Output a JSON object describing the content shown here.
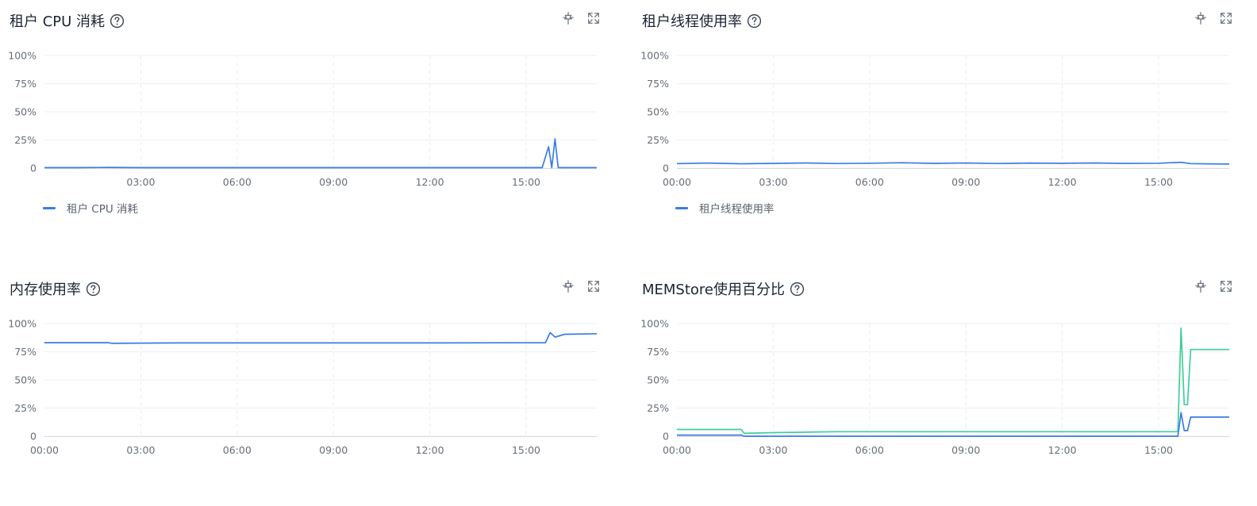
{
  "panels": [
    {
      "title": "租户 CPU 消耗",
      "legend": "租户 CPU 消耗"
    },
    {
      "title": "租户线程使用率",
      "legend": "租户线程使用率"
    },
    {
      "title": "内存使用率"
    },
    {
      "title": "MEMStore使用百分比"
    }
  ],
  "icons": {
    "help": "help-circle-icon",
    "pin": "pin-icon",
    "fullscreen": "fullscreen-icon"
  },
  "colors": {
    "series_blue": "#3b7be8",
    "series_green": "#3ecf98"
  },
  "chart_data": [
    {
      "type": "line",
      "title": "租户 CPU 消耗",
      "y_ticks": [
        "100%",
        "75%",
        "50%",
        "25%",
        "0"
      ],
      "x_ticks": [
        "03:00",
        "06:00",
        "09:00",
        "12:00",
        "15:00"
      ],
      "ylim": [
        0,
        100
      ],
      "xlim_hours": [
        0,
        17.2
      ],
      "legend_position": "bottom-left",
      "series": [
        {
          "name": "租户 CPU 消耗",
          "color": "#3b7be8",
          "points": [
            [
              0,
              0.4
            ],
            [
              1,
              0.4
            ],
            [
              2,
              0.6
            ],
            [
              3,
              0.4
            ],
            [
              6,
              0.4
            ],
            [
              9,
              0.4
            ],
            [
              12,
              0.4
            ],
            [
              15.5,
              0.4
            ],
            [
              15.7,
              19
            ],
            [
              15.8,
              0.4
            ],
            [
              15.9,
              26
            ],
            [
              16.0,
              0.4
            ],
            [
              17.2,
              0.4
            ]
          ]
        }
      ]
    },
    {
      "type": "line",
      "title": "租户线程使用率",
      "y_ticks": [
        "100%",
        "75%",
        "50%",
        "25%",
        "0"
      ],
      "x_ticks": [
        "00:00",
        "03:00",
        "06:00",
        "09:00",
        "12:00",
        "15:00"
      ],
      "ylim": [
        0,
        100
      ],
      "xlim_hours": [
        0,
        17.2
      ],
      "legend_position": "bottom-left",
      "series": [
        {
          "name": "租户线程使用率",
          "color": "#3b7be8",
          "points": [
            [
              0,
              4
            ],
            [
              1,
              4.5
            ],
            [
              2,
              3.9
            ],
            [
              3,
              4.2
            ],
            [
              4,
              4.6
            ],
            [
              5,
              4.1
            ],
            [
              6,
              4.4
            ],
            [
              7,
              4.8
            ],
            [
              8,
              4.2
            ],
            [
              9,
              4.6
            ],
            [
              10,
              4.1
            ],
            [
              11,
              4.5
            ],
            [
              12,
              4.3
            ],
            [
              13,
              4.6
            ],
            [
              14,
              4.2
            ],
            [
              15,
              4.4
            ],
            [
              15.7,
              5.2
            ],
            [
              16,
              4
            ],
            [
              17.2,
              3.6
            ]
          ]
        }
      ]
    },
    {
      "type": "line",
      "title": "内存使用率",
      "y_ticks": [
        "100%",
        "75%",
        "50%",
        "25%",
        "0"
      ],
      "x_ticks": [
        "00:00",
        "03:00",
        "06:00",
        "09:00",
        "12:00",
        "15:00"
      ],
      "ylim": [
        0,
        100
      ],
      "xlim_hours": [
        0,
        17.2
      ],
      "series": [
        {
          "color": "#3b7be8",
          "points": [
            [
              0,
              83
            ],
            [
              2,
              83
            ],
            [
              2.1,
              82.5
            ],
            [
              4,
              82.8
            ],
            [
              8,
              82.8
            ],
            [
              12,
              82.8
            ],
            [
              15.6,
              83
            ],
            [
              15.75,
              92
            ],
            [
              15.9,
              88
            ],
            [
              16.2,
              90.5
            ],
            [
              17.2,
              91
            ]
          ]
        }
      ]
    },
    {
      "type": "line",
      "title": "MEMStore使用百分比",
      "y_ticks": [
        "100%",
        "75%",
        "50%",
        "25%",
        "0"
      ],
      "x_ticks": [
        "00:00",
        "03:00",
        "06:00",
        "09:00",
        "12:00",
        "15:00"
      ],
      "ylim": [
        0,
        100
      ],
      "xlim_hours": [
        0,
        17.2
      ],
      "series": [
        {
          "color": "#3ecf98",
          "points": [
            [
              0,
              6
            ],
            [
              2,
              6
            ],
            [
              2.1,
              2.5
            ],
            [
              3,
              3.2
            ],
            [
              5,
              4
            ],
            [
              8,
              4
            ],
            [
              12,
              4
            ],
            [
              15.6,
              4
            ],
            [
              15.7,
              96
            ],
            [
              15.8,
              28
            ],
            [
              15.9,
              28
            ],
            [
              16.0,
              77
            ],
            [
              17.2,
              77
            ]
          ]
        },
        {
          "color": "#3b7be8",
          "points": [
            [
              0,
              1
            ],
            [
              2,
              1
            ],
            [
              2.1,
              0
            ],
            [
              6,
              0
            ],
            [
              12,
              0
            ],
            [
              15.6,
              0
            ],
            [
              15.7,
              21
            ],
            [
              15.8,
              5
            ],
            [
              15.9,
              5
            ],
            [
              16.0,
              17
            ],
            [
              17.2,
              17
            ]
          ]
        }
      ]
    }
  ]
}
